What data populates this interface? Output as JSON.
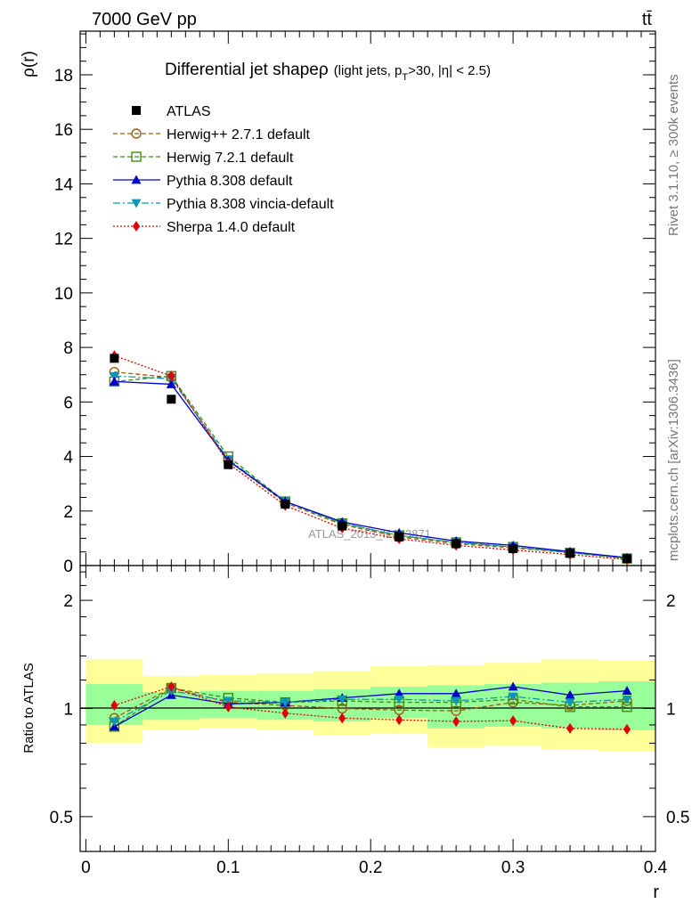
{
  "header": {
    "energy_label": "7000 GeV pp",
    "process_label": "tt̄",
    "rivet_label": "Rivet 3.1.10, ≥ 300k events",
    "mcplots_label": "mcplots.cern.ch [arXiv:1306.3436]",
    "watermark": "ATLAS_2013_I1243871"
  },
  "colors": {
    "atlas": "#000000",
    "herwigpp": "#a05a0a",
    "herwig7": "#3c8c14",
    "pythia": "#0000cc",
    "vincia": "#0a96b4",
    "sherpa": "#e00000",
    "band_outer": "#ffff99",
    "band_inner": "#99ff99"
  },
  "chart_data": [
    {
      "type": "line",
      "title": "Differential jet shape ρ (light jets, p_T>30, |η| < 2.5)",
      "title_main": "Differential jet shape",
      "title_rho": "ρ",
      "title_paren_open": "(light jets, p",
      "title_sub_T": "T",
      "title_paren_close": ">30, |η| < 2.5)",
      "ylabel": "ρ(r)",
      "ylim": [
        0,
        19.6
      ],
      "xlim": [
        -0.004,
        0.4
      ],
      "y_ticks": [
        0,
        2,
        4,
        6,
        8,
        10,
        12,
        14,
        16,
        18
      ],
      "y_tick_labels": [
        "0",
        "2",
        "4",
        "6",
        "8",
        "10",
        "12",
        "14",
        "16",
        "18"
      ],
      "x": [
        0.02,
        0.06,
        0.1,
        0.14,
        0.18,
        0.22,
        0.26,
        0.3,
        0.34,
        0.38
      ],
      "series": [
        {
          "name": "ATLAS",
          "values": [
            7.6,
            6.1,
            3.7,
            2.25,
            1.45,
            1.05,
            0.8,
            0.62,
            0.45,
            0.25
          ]
        },
        {
          "name": "Herwig++ 2.7.1 default",
          "values": [
            7.1,
            6.9,
            3.85,
            2.3,
            1.5,
            1.05,
            0.8,
            0.65,
            0.47,
            0.26
          ]
        },
        {
          "name": "Herwig 7.2.1 default",
          "values": [
            6.75,
            6.95,
            4.0,
            2.35,
            1.55,
            1.1,
            0.85,
            0.68,
            0.47,
            0.26
          ]
        },
        {
          "name": "Pythia 8.308 default",
          "values": [
            6.75,
            6.65,
            3.85,
            2.35,
            1.6,
            1.2,
            0.9,
            0.74,
            0.51,
            0.29
          ]
        },
        {
          "name": "Pythia 8.308 vincia-default",
          "values": [
            6.95,
            6.85,
            3.9,
            2.35,
            1.55,
            1.1,
            0.85,
            0.68,
            0.48,
            0.27
          ]
        },
        {
          "name": "Sherpa 1.4.0 default",
          "values": [
            7.7,
            6.95,
            3.75,
            2.2,
            1.37,
            0.98,
            0.74,
            0.57,
            0.4,
            0.22
          ]
        }
      ]
    },
    {
      "type": "line",
      "ylabel": "Ratio to ATLAS",
      "xlabel": "r",
      "ylim": [
        0.4,
        2.5
      ],
      "yscale": "log",
      "xlim": [
        -0.004,
        0.4
      ],
      "y_ticks": [
        0.5,
        1,
        2
      ],
      "y_tick_labels": [
        "0.5",
        "1",
        "2"
      ],
      "x_ticks": [
        0,
        0.1,
        0.2,
        0.3,
        0.4
      ],
      "x_tick_labels": [
        "0",
        "0.1",
        "0.2",
        "0.3",
        "0.4"
      ],
      "x": [
        0.02,
        0.06,
        0.1,
        0.14,
        0.18,
        0.22,
        0.26,
        0.3,
        0.34,
        0.38
      ],
      "bin_edges": [
        0.0,
        0.04,
        0.08,
        0.12,
        0.16,
        0.2,
        0.24,
        0.28,
        0.32,
        0.36,
        0.4
      ],
      "band_outer": {
        "low": [
          0.8,
          0.87,
          0.88,
          0.87,
          0.84,
          0.85,
          0.78,
          0.79,
          0.77,
          0.76
        ],
        "high": [
          1.37,
          1.23,
          1.24,
          1.25,
          1.27,
          1.31,
          1.32,
          1.34,
          1.37,
          1.36
        ]
      },
      "band_inner": {
        "low": [
          0.9,
          0.93,
          0.94,
          0.93,
          0.92,
          0.94,
          0.88,
          0.89,
          0.88,
          0.87
        ],
        "high": [
          1.17,
          1.11,
          1.12,
          1.12,
          1.13,
          1.15,
          1.16,
          1.17,
          1.18,
          1.19
        ]
      },
      "series": [
        {
          "name": "Herwig++ 2.7.1 default",
          "values": [
            0.94,
            1.14,
            1.04,
            1.02,
            1.0,
            0.99,
            0.985,
            1.04,
            1.02,
            1.05
          ]
        },
        {
          "name": "Herwig 7.2.1 default",
          "values": [
            0.89,
            1.14,
            1.07,
            1.04,
            1.05,
            1.04,
            1.04,
            1.06,
            1.01,
            1.01
          ]
        },
        {
          "name": "Pythia 8.308 default",
          "values": [
            0.89,
            1.09,
            1.03,
            1.04,
            1.07,
            1.1,
            1.1,
            1.15,
            1.09,
            1.12
          ]
        },
        {
          "name": "Pythia 8.308 vincia-default",
          "values": [
            0.92,
            1.12,
            1.05,
            1.04,
            1.06,
            1.06,
            1.05,
            1.08,
            1.04,
            1.06
          ]
        },
        {
          "name": "Sherpa 1.4.0 default",
          "values": [
            1.02,
            1.15,
            1.01,
            0.97,
            0.94,
            0.93,
            0.92,
            0.925,
            0.88,
            0.875
          ]
        }
      ]
    }
  ]
}
